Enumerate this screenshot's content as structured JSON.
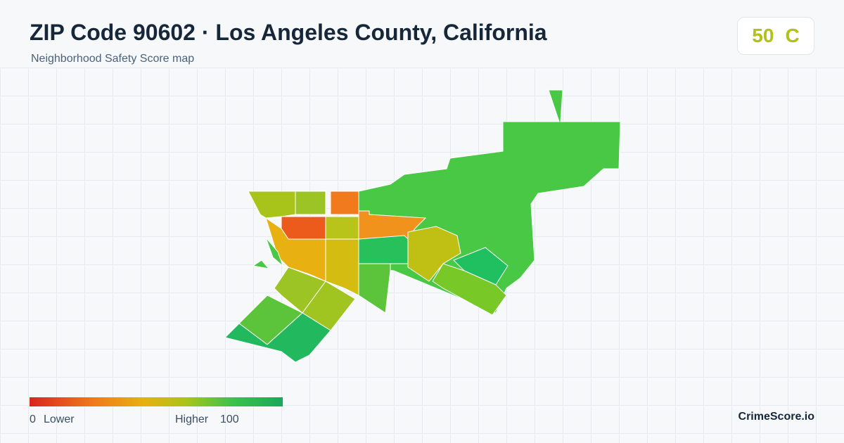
{
  "header": {
    "title": "ZIP Code 90602 · Los Angeles County, California",
    "subtitle": "Neighborhood Safety Score map"
  },
  "score": {
    "value": 50,
    "grade": "C"
  },
  "legend": {
    "min": 0,
    "min_label": "Lower",
    "max_label": "Higher",
    "max": 100
  },
  "brand": "CrimeScore.io"
}
